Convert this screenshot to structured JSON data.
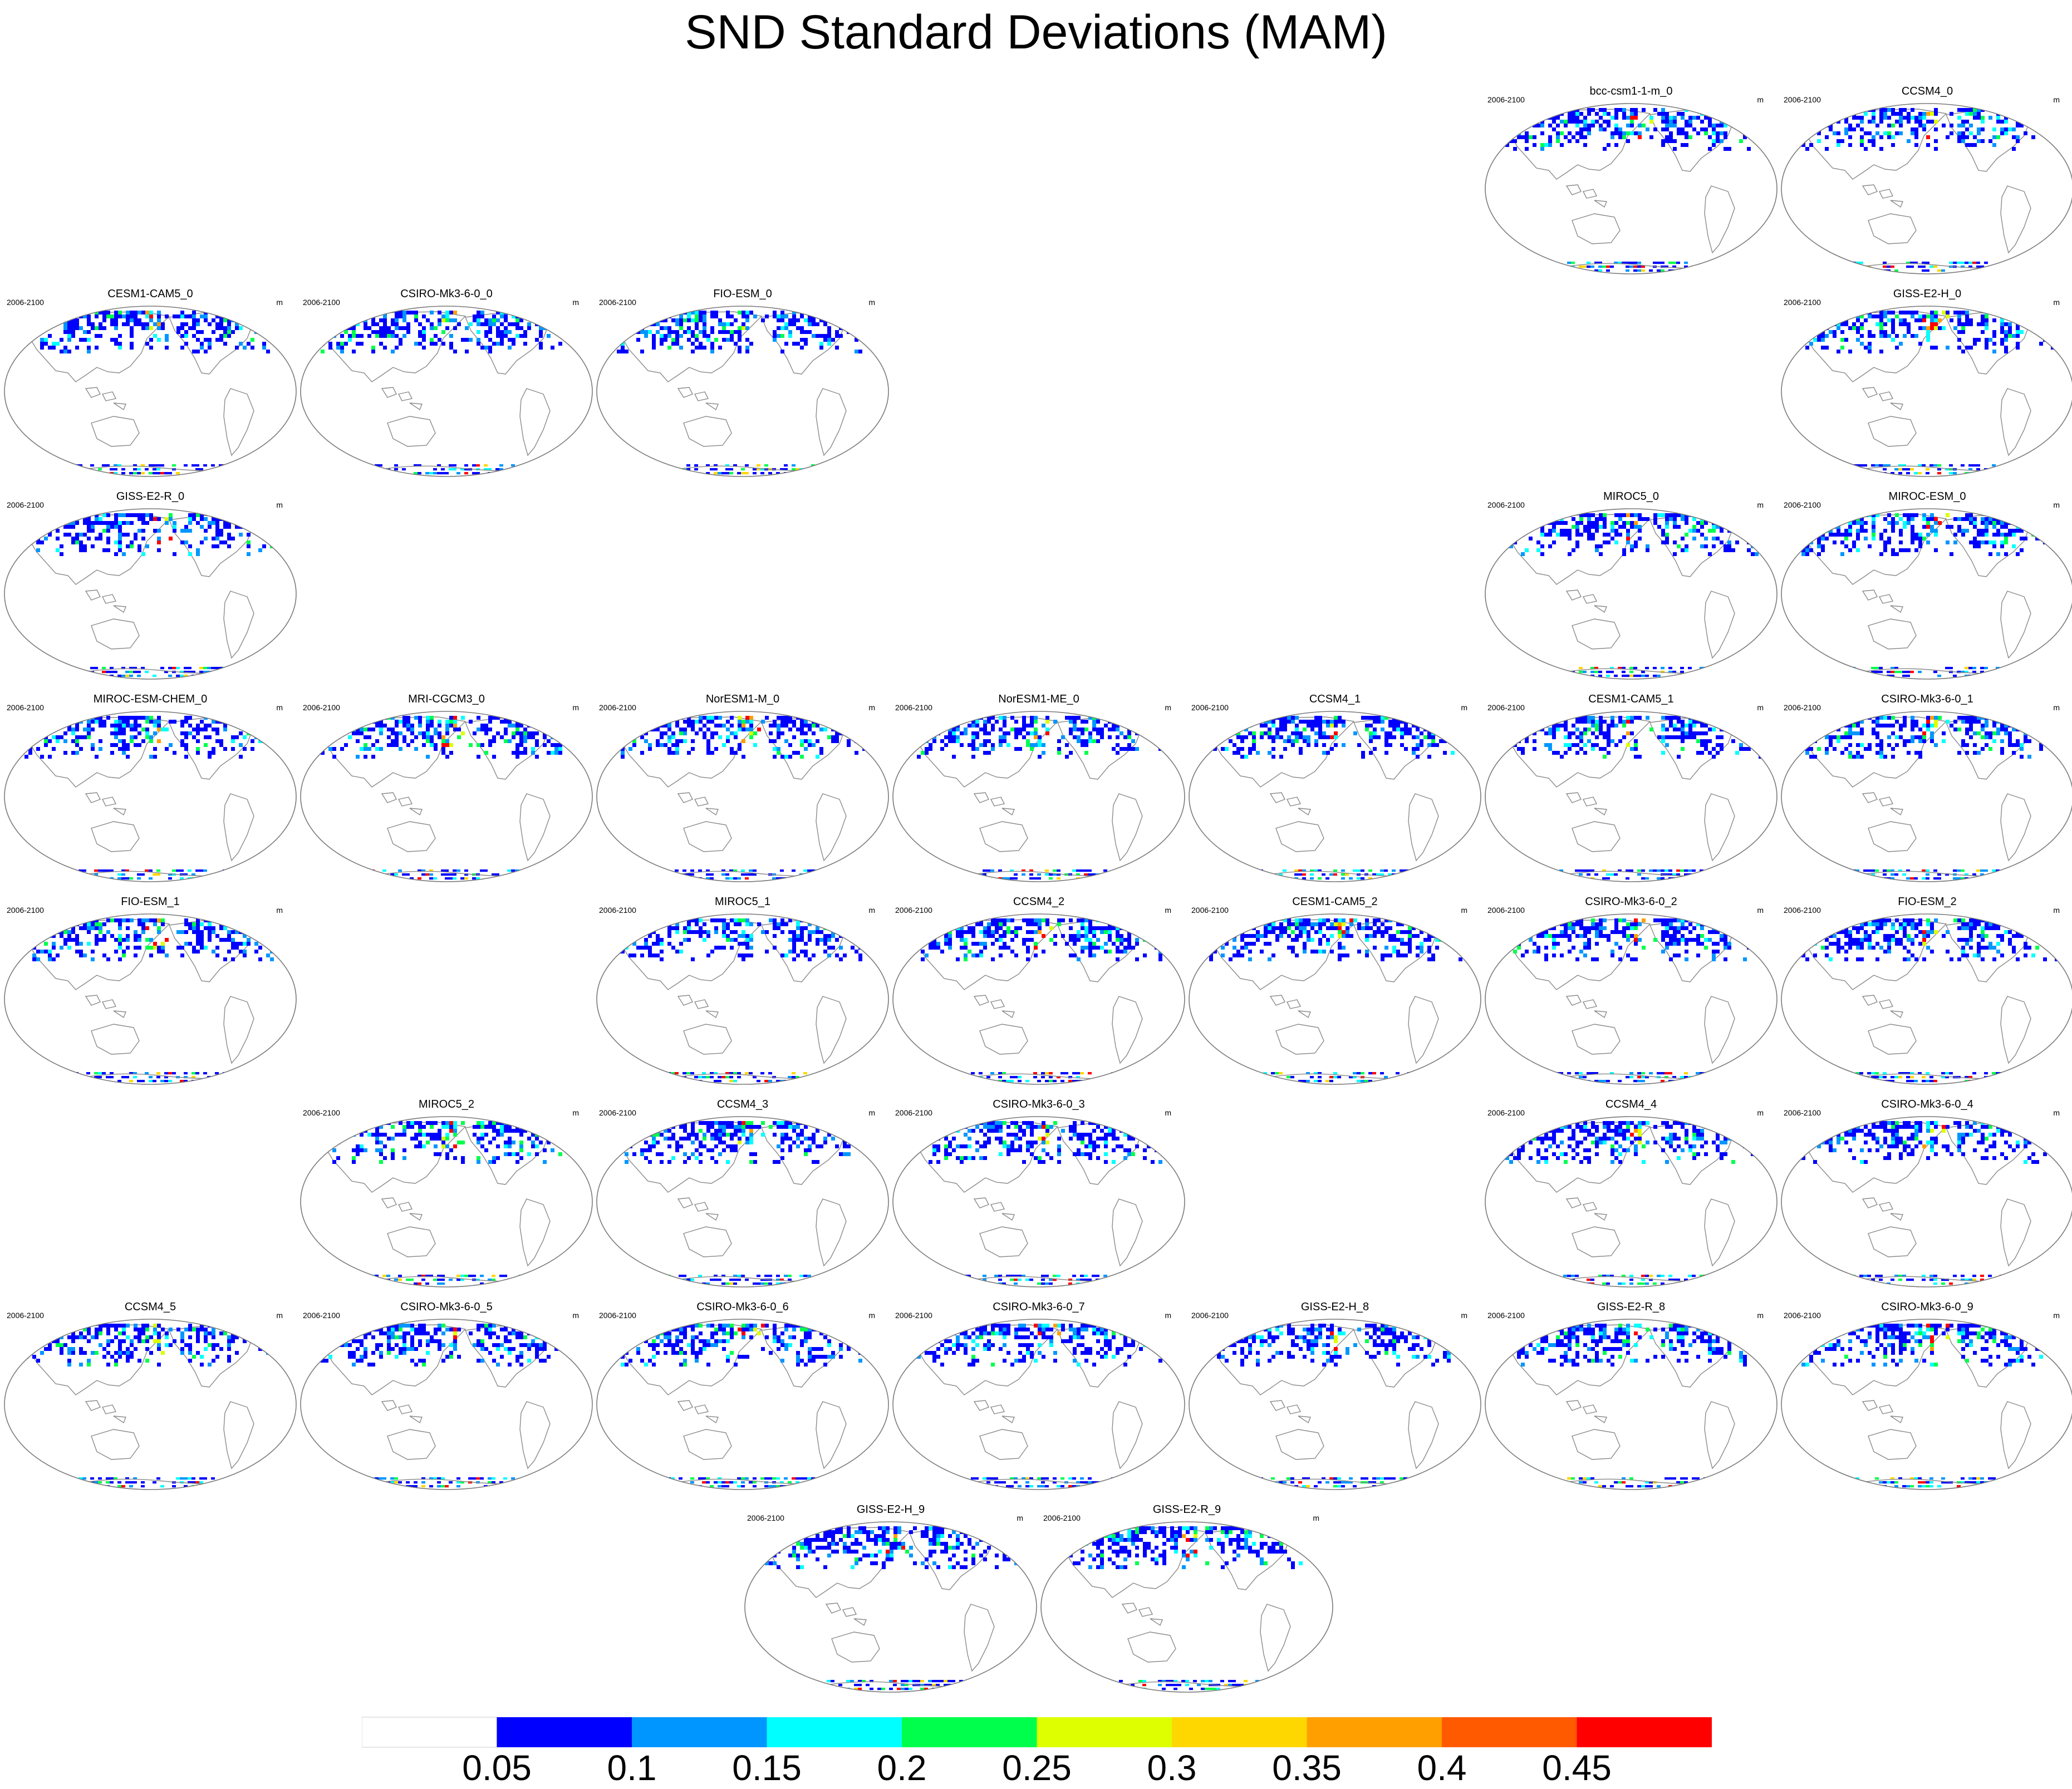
{
  "title": "SND Standard Deviations (MAM)",
  "panel_left_text": "2006-2100",
  "panel_right_text": "m",
  "panels": [
    {
      "title": "bcc-csm1-1-m_0",
      "row": 0,
      "col": 5
    },
    {
      "title": "CCSM4_0",
      "row": 0,
      "col": 6
    },
    {
      "title": "CESM1-CAM5_0",
      "row": 1,
      "col": 0
    },
    {
      "title": "CSIRO-Mk3-6-0_0",
      "row": 1,
      "col": 1
    },
    {
      "title": "FIO-ESM_0",
      "row": 1,
      "col": 2
    },
    {
      "title": "GISS-E2-H_0",
      "row": 1,
      "col": 6
    },
    {
      "title": "GISS-E2-R_0",
      "row": 2,
      "col": 0
    },
    {
      "title": "MIROC5_0",
      "row": 2,
      "col": 5
    },
    {
      "title": "MIROC-ESM_0",
      "row": 2,
      "col": 6
    },
    {
      "title": "MIROC-ESM-CHEM_0",
      "row": 3,
      "col": 0
    },
    {
      "title": "MRI-CGCM3_0",
      "row": 3,
      "col": 1
    },
    {
      "title": "NorESM1-M_0",
      "row": 3,
      "col": 2
    },
    {
      "title": "NorESM1-ME_0",
      "row": 3,
      "col": 3
    },
    {
      "title": "CCSM4_1",
      "row": 3,
      "col": 4
    },
    {
      "title": "CESM1-CAM5_1",
      "row": 3,
      "col": 5
    },
    {
      "title": "CSIRO-Mk3-6-0_1",
      "row": 3,
      "col": 6
    },
    {
      "title": "FIO-ESM_1",
      "row": 4,
      "col": 0
    },
    {
      "title": "MIROC5_1",
      "row": 4,
      "col": 2
    },
    {
      "title": "CCSM4_2",
      "row": 4,
      "col": 3
    },
    {
      "title": "CESM1-CAM5_2",
      "row": 4,
      "col": 4
    },
    {
      "title": "CSIRO-Mk3-6-0_2",
      "row": 4,
      "col": 5
    },
    {
      "title": "FIO-ESM_2",
      "row": 4,
      "col": 6
    },
    {
      "title": "MIROC5_2",
      "row": 5,
      "col": 1
    },
    {
      "title": "CCSM4_3",
      "row": 5,
      "col": 2
    },
    {
      "title": "CSIRO-Mk3-6-0_3",
      "row": 5,
      "col": 3
    },
    {
      "title": "CCSM4_4",
      "row": 5,
      "col": 5
    },
    {
      "title": "CSIRO-Mk3-6-0_4",
      "row": 5,
      "col": 6
    },
    {
      "title": "CCSM4_5",
      "row": 6,
      "col": 0
    },
    {
      "title": "CSIRO-Mk3-6-0_5",
      "row": 6,
      "col": 1
    },
    {
      "title": "CSIRO-Mk3-6-0_6",
      "row": 6,
      "col": 2
    },
    {
      "title": "CSIRO-Mk3-6-0_7",
      "row": 6,
      "col": 3
    },
    {
      "title": "GISS-E2-H_8",
      "row": 6,
      "col": 4
    },
    {
      "title": "GISS-E2-R_8",
      "row": 6,
      "col": 5
    },
    {
      "title": "CSIRO-Mk3-6-0_9",
      "row": 6,
      "col": 6
    },
    {
      "title": "GISS-E2-H_9",
      "row": 7,
      "col": 2.5
    },
    {
      "title": "GISS-E2-R_9",
      "row": 7,
      "col": 3.5
    }
  ],
  "colorbar": {
    "colors": [
      "#ffffff",
      "#0000ff",
      "#0096ff",
      "#00ffff",
      "#00ff4d",
      "#ddff00",
      "#ffd700",
      "#ff9f00",
      "#ff5a00",
      "#ff0000"
    ],
    "labels": [
      "0.05",
      "0.1",
      "0.15",
      "0.2",
      "0.25",
      "0.3",
      "0.35",
      "0.4",
      "0.45"
    ]
  },
  "colors": {
    "coastline": "#8a8a8a",
    "map_border": "#7a7a7a"
  }
}
